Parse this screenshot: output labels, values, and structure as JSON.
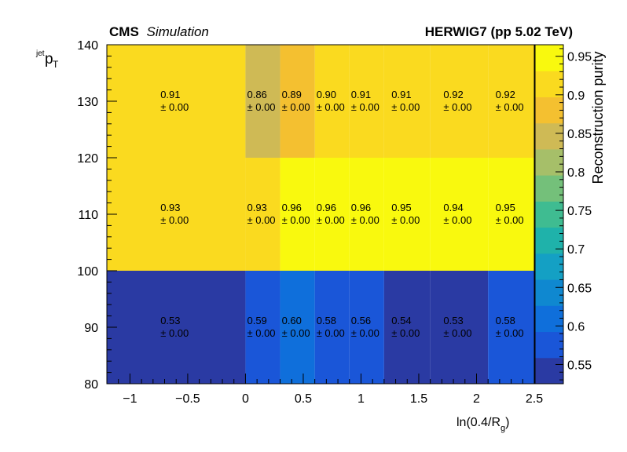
{
  "header": {
    "experiment": "CMS",
    "experiment_note": "Simulation",
    "generator": "HERWIG7 (pp 5.02 TeV)"
  },
  "chart_data": {
    "type": "heatmap",
    "xlabel_main": "ln(0.4/R",
    "xlabel_sub": "g",
    "xlabel_close": ")",
    "ylabel_main": "p",
    "ylabel_sub": "T",
    "ylabel_sup": "jet",
    "zlabel": "Reconstruction purity",
    "xlim": [
      -1.2,
      2.5
    ],
    "ylim": [
      80,
      140
    ],
    "zlim": [
      0.525,
      0.965
    ],
    "x_ticks": [
      "−1",
      "−0.5",
      "0",
      "0.5",
      "1",
      "1.5",
      "2",
      "2.5"
    ],
    "y_ticks": [
      "80",
      "90",
      "100",
      "110",
      "120",
      "130",
      "140"
    ],
    "z_ticks": [
      "0.55",
      "0.6",
      "0.65",
      "0.7",
      "0.75",
      "0.8",
      "0.85",
      "0.9",
      "0.95"
    ],
    "x_edges": [
      -1.2,
      0,
      0.3,
      0.6,
      0.9,
      1.2,
      1.6,
      2.1,
      2.5
    ],
    "y_edges": [
      80,
      100,
      120,
      140
    ],
    "z": [
      [
        0.53,
        0.59,
        0.6,
        0.58,
        0.56,
        0.54,
        0.53,
        0.58
      ],
      [
        0.93,
        0.93,
        0.96,
        0.96,
        0.96,
        0.95,
        0.94,
        0.95
      ],
      [
        0.91,
        0.86,
        0.89,
        0.9,
        0.91,
        0.91,
        0.92,
        0.92
      ]
    ],
    "value_labels": [
      [
        "0.53",
        "0.59",
        "0.60",
        "0.58",
        "0.56",
        "0.54",
        "0.53",
        "0.58"
      ],
      [
        "0.93",
        "0.93",
        "0.96",
        "0.96",
        "0.96",
        "0.95",
        "0.94",
        "0.95"
      ],
      [
        "0.91",
        "0.86",
        "0.89",
        "0.90",
        "0.91",
        "0.91",
        "0.92",
        "0.92"
      ]
    ],
    "error_labels": [
      [
        "± 0.00",
        "± 0.00",
        "± 0.00",
        "± 0.00",
        "± 0.00",
        "± 0.00",
        "± 0.00",
        "± 0.00"
      ],
      [
        "± 0.00",
        "± 0.00",
        "± 0.00",
        "± 0.00",
        "± 0.00",
        "± 0.00",
        "± 0.00",
        "± 0.00"
      ],
      [
        "± 0.00",
        "± 0.00",
        "± 0.00",
        "± 0.00",
        "± 0.00",
        "± 0.00",
        "± 0.00",
        "± 0.00"
      ]
    ],
    "palette": [
      "#2a3aa3",
      "#1a56d8",
      "#0f6fdb",
      "#0f88d0",
      "#14a0c4",
      "#1fb2aa",
      "#3fbc91",
      "#74c07a",
      "#a6bf69",
      "#cfba55",
      "#f4c030",
      "#fada1f",
      "#f9f90e"
    ]
  }
}
